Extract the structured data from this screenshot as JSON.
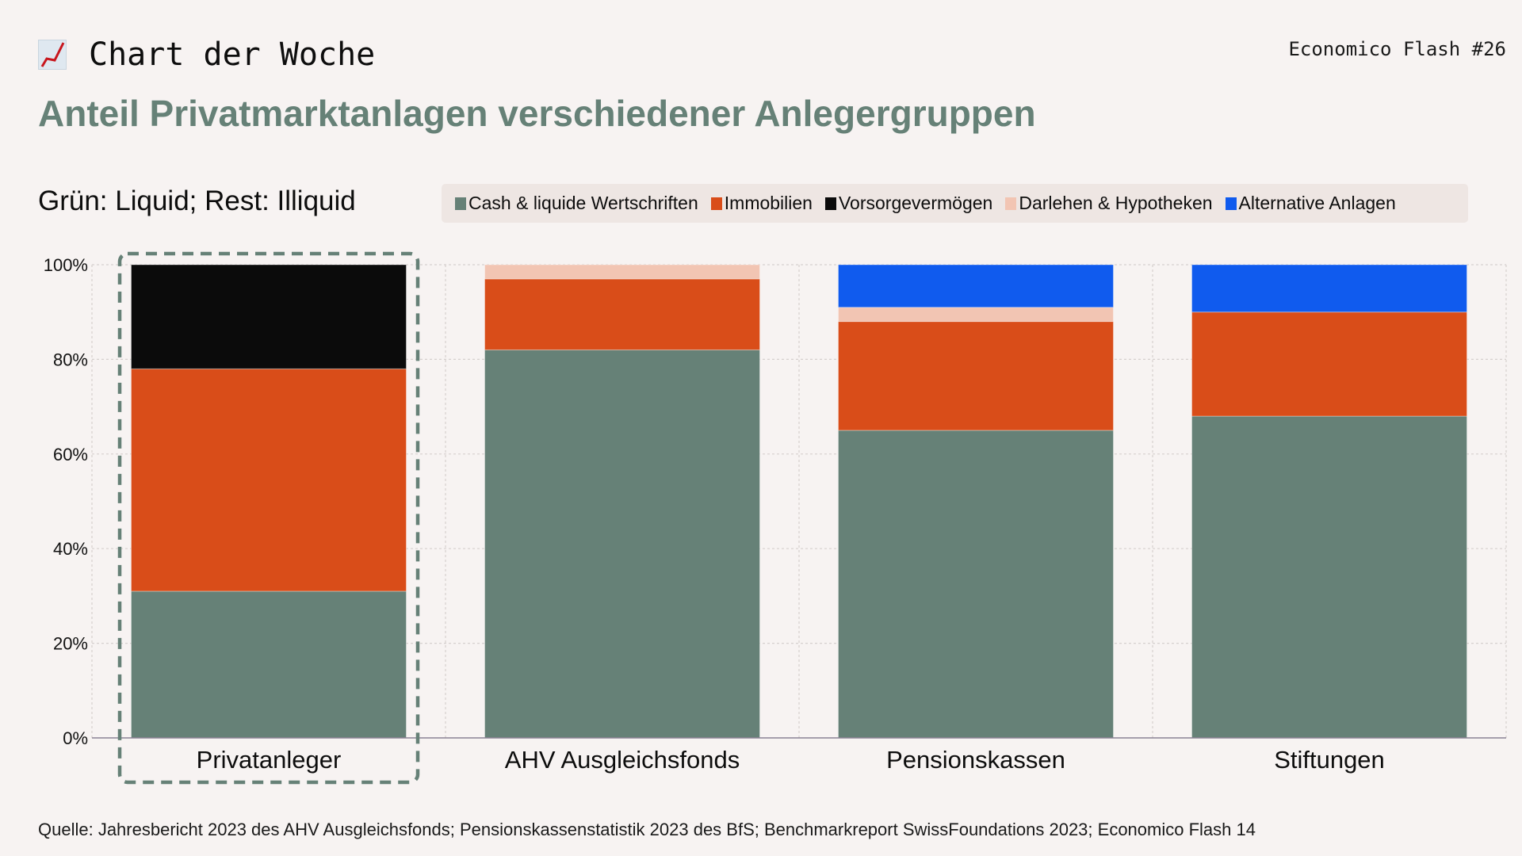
{
  "header": {
    "kicker_icon": "chart-increasing-icon",
    "kicker": "Chart der Woche",
    "issue": "Economico Flash #26",
    "title": "Anteil Privatmarktanlagen verschiedener Anlegergruppen",
    "subtitle": "Grün: Liquid; Rest: Illiquid"
  },
  "colors": {
    "background": "#f7f3f2",
    "accent": "#668177",
    "legend_bg": "#eee6e3"
  },
  "footer": {
    "source": "Quelle: Jahresbericht 2023 des AHV Ausgleichsfonds; Pensionskassenstatistik 2023 des BfS; Benchmarkreport SwissFoundations 2023; Economico Flash 14"
  },
  "chart_data": {
    "type": "bar",
    "stacked": true,
    "title": "Anteil Privatmarktanlagen verschiedener Anlegergruppen",
    "subtitle": "Grün: Liquid; Rest: Illiquid",
    "xlabel": "",
    "ylabel": "",
    "ylim": [
      0,
      100
    ],
    "yticks": [
      0,
      20,
      40,
      60,
      80,
      100
    ],
    "ytick_labels": [
      "0%",
      "20%",
      "40%",
      "60%",
      "80%",
      "100%"
    ],
    "grid": true,
    "legend_position": "top-right",
    "categories": [
      "Privatanleger",
      "AHV Ausgleichsfonds",
      "Pensionskassen",
      "Stiftungen"
    ],
    "highlighted_category": "Privatanleger",
    "series": [
      {
        "name": "Cash & liquide Wertschriften",
        "color": "#668177",
        "values": [
          31,
          82,
          65,
          68
        ]
      },
      {
        "name": "Immobilien",
        "color": "#d94d19",
        "values": [
          47,
          15,
          23,
          22
        ]
      },
      {
        "name": "Vorsorgevermögen",
        "color": "#0b0b0b",
        "values": [
          22,
          0,
          0,
          0
        ]
      },
      {
        "name": "Darlehen & Hypotheken",
        "color": "#f2c5b3",
        "values": [
          0,
          3,
          3,
          0
        ]
      },
      {
        "name": "Alternative Anlagen",
        "color": "#105bee",
        "values": [
          0,
          0,
          9,
          10
        ]
      }
    ]
  }
}
